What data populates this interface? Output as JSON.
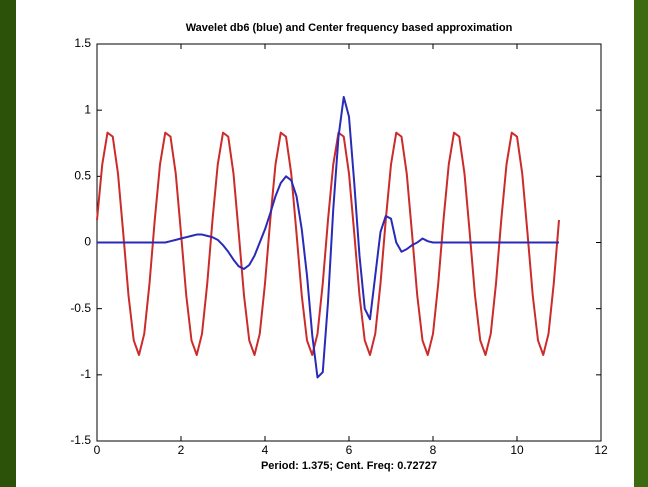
{
  "chart_data": {
    "type": "line",
    "title": "Wavelet db6 (blue) and Center frequency based approximation",
    "xlabel": "Period: 1.375; Cent. Freq: 0.72727",
    "xlim": [
      0,
      12
    ],
    "xticks": [
      0,
      2,
      4,
      6,
      8,
      10,
      12
    ],
    "ylim": [
      -1.5,
      1.5
    ],
    "yticks": [
      -1.5,
      -1,
      -0.5,
      0,
      0.5,
      1,
      1.5
    ],
    "x": [
      0,
      0.125,
      0.25,
      0.375,
      0.5,
      0.625,
      0.75,
      0.875,
      1,
      1.125,
      1.25,
      1.375,
      1.5,
      1.625,
      1.75,
      1.875,
      2,
      2.125,
      2.25,
      2.375,
      2.5,
      2.625,
      2.75,
      2.875,
      3,
      3.125,
      3.25,
      3.375,
      3.5,
      3.625,
      3.75,
      3.875,
      4,
      4.125,
      4.25,
      4.375,
      4.5,
      4.625,
      4.75,
      4.875,
      5,
      5.125,
      5.25,
      5.375,
      5.5,
      5.625,
      5.75,
      5.875,
      6,
      6.125,
      6.25,
      6.375,
      6.5,
      6.625,
      6.75,
      6.875,
      7,
      7.125,
      7.25,
      7.375,
      7.5,
      7.625,
      7.75,
      7.875,
      8,
      8.125,
      8.25,
      8.375,
      8.5,
      8.625,
      8.75,
      8.875,
      9,
      9.125,
      9.25,
      9.375,
      9.5,
      9.625,
      9.75,
      9.875,
      10,
      10.125,
      10.25,
      10.375,
      10.5,
      10.625,
      10.75,
      10.875,
      11
    ],
    "series": [
      {
        "name": "approximation",
        "color": "#cc2b2b",
        "values": [
          0.17,
          0.59,
          0.83,
          0.8,
          0.52,
          0.07,
          -0.4,
          -0.74,
          -0.85,
          -0.69,
          -0.31,
          0.17,
          0.59,
          0.83,
          0.8,
          0.52,
          0.07,
          -0.4,
          -0.74,
          -0.85,
          -0.69,
          -0.31,
          0.17,
          0.59,
          0.83,
          0.8,
          0.52,
          0.07,
          -0.4,
          -0.74,
          -0.85,
          -0.69,
          -0.31,
          0.17,
          0.59,
          0.83,
          0.8,
          0.52,
          0.07,
          -0.4,
          -0.74,
          -0.85,
          -0.69,
          -0.31,
          0.17,
          0.59,
          0.83,
          0.8,
          0.52,
          0.07,
          -0.4,
          -0.74,
          -0.85,
          -0.69,
          -0.31,
          0.17,
          0.59,
          0.83,
          0.8,
          0.52,
          0.07,
          -0.4,
          -0.74,
          -0.85,
          -0.69,
          -0.31,
          0.17,
          0.59,
          0.83,
          0.8,
          0.52,
          0.07,
          -0.4,
          -0.74,
          -0.85,
          -0.69,
          -0.31,
          0.17,
          0.59,
          0.83,
          0.8,
          0.52,
          0.07,
          -0.4,
          -0.74,
          -0.85,
          -0.69,
          -0.31,
          0.17
        ]
      },
      {
        "name": "db6",
        "color": "#2a2ab8",
        "values": [
          0,
          0,
          0,
          0,
          0,
          0,
          0,
          0,
          0,
          0,
          0,
          0,
          0,
          0,
          0.01,
          0.02,
          0.03,
          0.04,
          0.05,
          0.06,
          0.06,
          0.05,
          0.04,
          0.02,
          -0.02,
          -0.07,
          -0.13,
          -0.18,
          -0.2,
          -0.17,
          -0.1,
          0,
          0.1,
          0.22,
          0.35,
          0.45,
          0.5,
          0.47,
          0.35,
          0.1,
          -0.25,
          -0.7,
          -1.02,
          -0.98,
          -0.45,
          0.25,
          0.8,
          1.1,
          0.95,
          0.45,
          -0.1,
          -0.5,
          -0.58,
          -0.25,
          0.08,
          0.2,
          0.18,
          0,
          -0.07,
          -0.05,
          -0.02,
          0,
          0.03,
          0.01,
          0,
          0,
          0,
          0,
          0,
          0,
          0,
          0,
          0,
          0,
          0,
          0,
          0,
          0,
          0,
          0,
          0,
          0,
          0,
          0,
          0,
          0,
          0,
          0,
          0
        ]
      }
    ]
  }
}
